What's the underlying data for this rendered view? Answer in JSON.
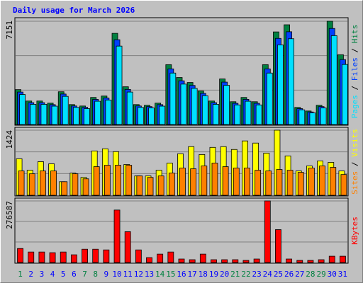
{
  "title": "Daily usage for March 2026",
  "legend_separator": " / ",
  "chart_data": [
    {
      "type": "bar",
      "ylim": [
        0,
        7151
      ],
      "yticks": [
        7151
      ],
      "series": [
        {
          "name": "Hits",
          "color": "#008040",
          "values": [
            2417,
            1627,
            1627,
            1480,
            2269,
            1381,
            1282,
            1874,
            1973,
            6313,
            2614,
            1381,
            1332,
            1480,
            4143,
            3255,
            2910,
            2318,
            1627,
            3156,
            1578,
            1874,
            1578,
            4143,
            6411,
            6905,
            1184,
            937,
            1332,
            7151,
            4833
          ]
        },
        {
          "name": "Files",
          "color": "#0040ff",
          "values": [
            2248,
            1513,
            1513,
            1376,
            2110,
            1284,
            1192,
            1743,
            1835,
            5871,
            2431,
            1284,
            1239,
            1376,
            3853,
            3027,
            2706,
            2156,
            1513,
            2935,
            1468,
            1743,
            1468,
            3853,
            5962,
            6422,
            1101,
            871,
            1239,
            6650,
            4495
          ]
        },
        {
          "name": "Pages",
          "color": "#00e0ff",
          "values": [
            2079,
            1399,
            1399,
            1273,
            1951,
            1188,
            1103,
            1612,
            1697,
            5429,
            2248,
            1188,
            1146,
            1273,
            3563,
            2799,
            2503,
            1993,
            1399,
            2714,
            1357,
            1612,
            1357,
            3563,
            5513,
            5938,
            1018,
            806,
            1146,
            6150,
            4156
          ]
        }
      ]
    },
    {
      "type": "bar",
      "ylim": [
        0,
        1424
      ],
      "yticks": [
        1424
      ],
      "series": [
        {
          "name": "Visits",
          "color": "#ffff00",
          "values": [
            798,
            548,
            736,
            689,
            297,
            485,
            391,
            970,
            1017,
            955,
            673,
            423,
            423,
            548,
            704,
            908,
            1064,
            892,
            1048,
            1064,
            1002,
            1189,
            1142,
            923,
            1424,
            861,
            532,
            642,
            751,
            720,
            532
          ]
        },
        {
          "name": "Sites",
          "color": "#ff8000",
          "values": [
            532,
            470,
            532,
            532,
            297,
            470,
            360,
            626,
            657,
            657,
            657,
            423,
            391,
            423,
            485,
            595,
            579,
            642,
            704,
            626,
            595,
            595,
            548,
            532,
            564,
            548,
            501,
            595,
            642,
            610,
            454
          ]
        }
      ]
    },
    {
      "type": "bar",
      "ylim": [
        0,
        276587
      ],
      "yticks": [
        276587
      ],
      "categories": [
        "1",
        "2",
        "3",
        "4",
        "5",
        "6",
        "7",
        "8",
        "9",
        "10",
        "11",
        "12",
        "13",
        "14",
        "15",
        "16",
        "17",
        "18",
        "19",
        "20",
        "21",
        "22",
        "23",
        "24",
        "25",
        "26",
        "27",
        "28",
        "29",
        "30",
        "31"
      ],
      "category_colors": [
        "#008040",
        "#0000ff",
        "#0000ff",
        "#0000ff",
        "#0000ff",
        "#0000ff",
        "#008040",
        "#008040",
        "#0000ff",
        "#0000ff",
        "#0000ff",
        "#0000ff",
        "#0000ff",
        "#008040",
        "#008040",
        "#0000ff",
        "#0000ff",
        "#0000ff",
        "#0000ff",
        "#0000ff",
        "#008040",
        "#008040",
        "#0000ff",
        "#0000ff",
        "#0000ff",
        "#0000ff",
        "#0000ff",
        "#008040",
        "#008040",
        "#0000ff",
        "#0000ff"
      ],
      "series": [
        {
          "name": "KBytes",
          "color": "#ff0000",
          "values": [
            62861,
            47146,
            47146,
            44002,
            47146,
            34574,
            59718,
            59718,
            56575,
            235716,
            138294,
            56575,
            22002,
            37717,
            47146,
            15715,
            12572,
            37717,
            12572,
            12572,
            12572,
            9429,
            15715,
            276587,
            147723,
            15715,
            9429,
            9429,
            12572,
            28287,
            28287
          ]
        }
      ]
    }
  ]
}
